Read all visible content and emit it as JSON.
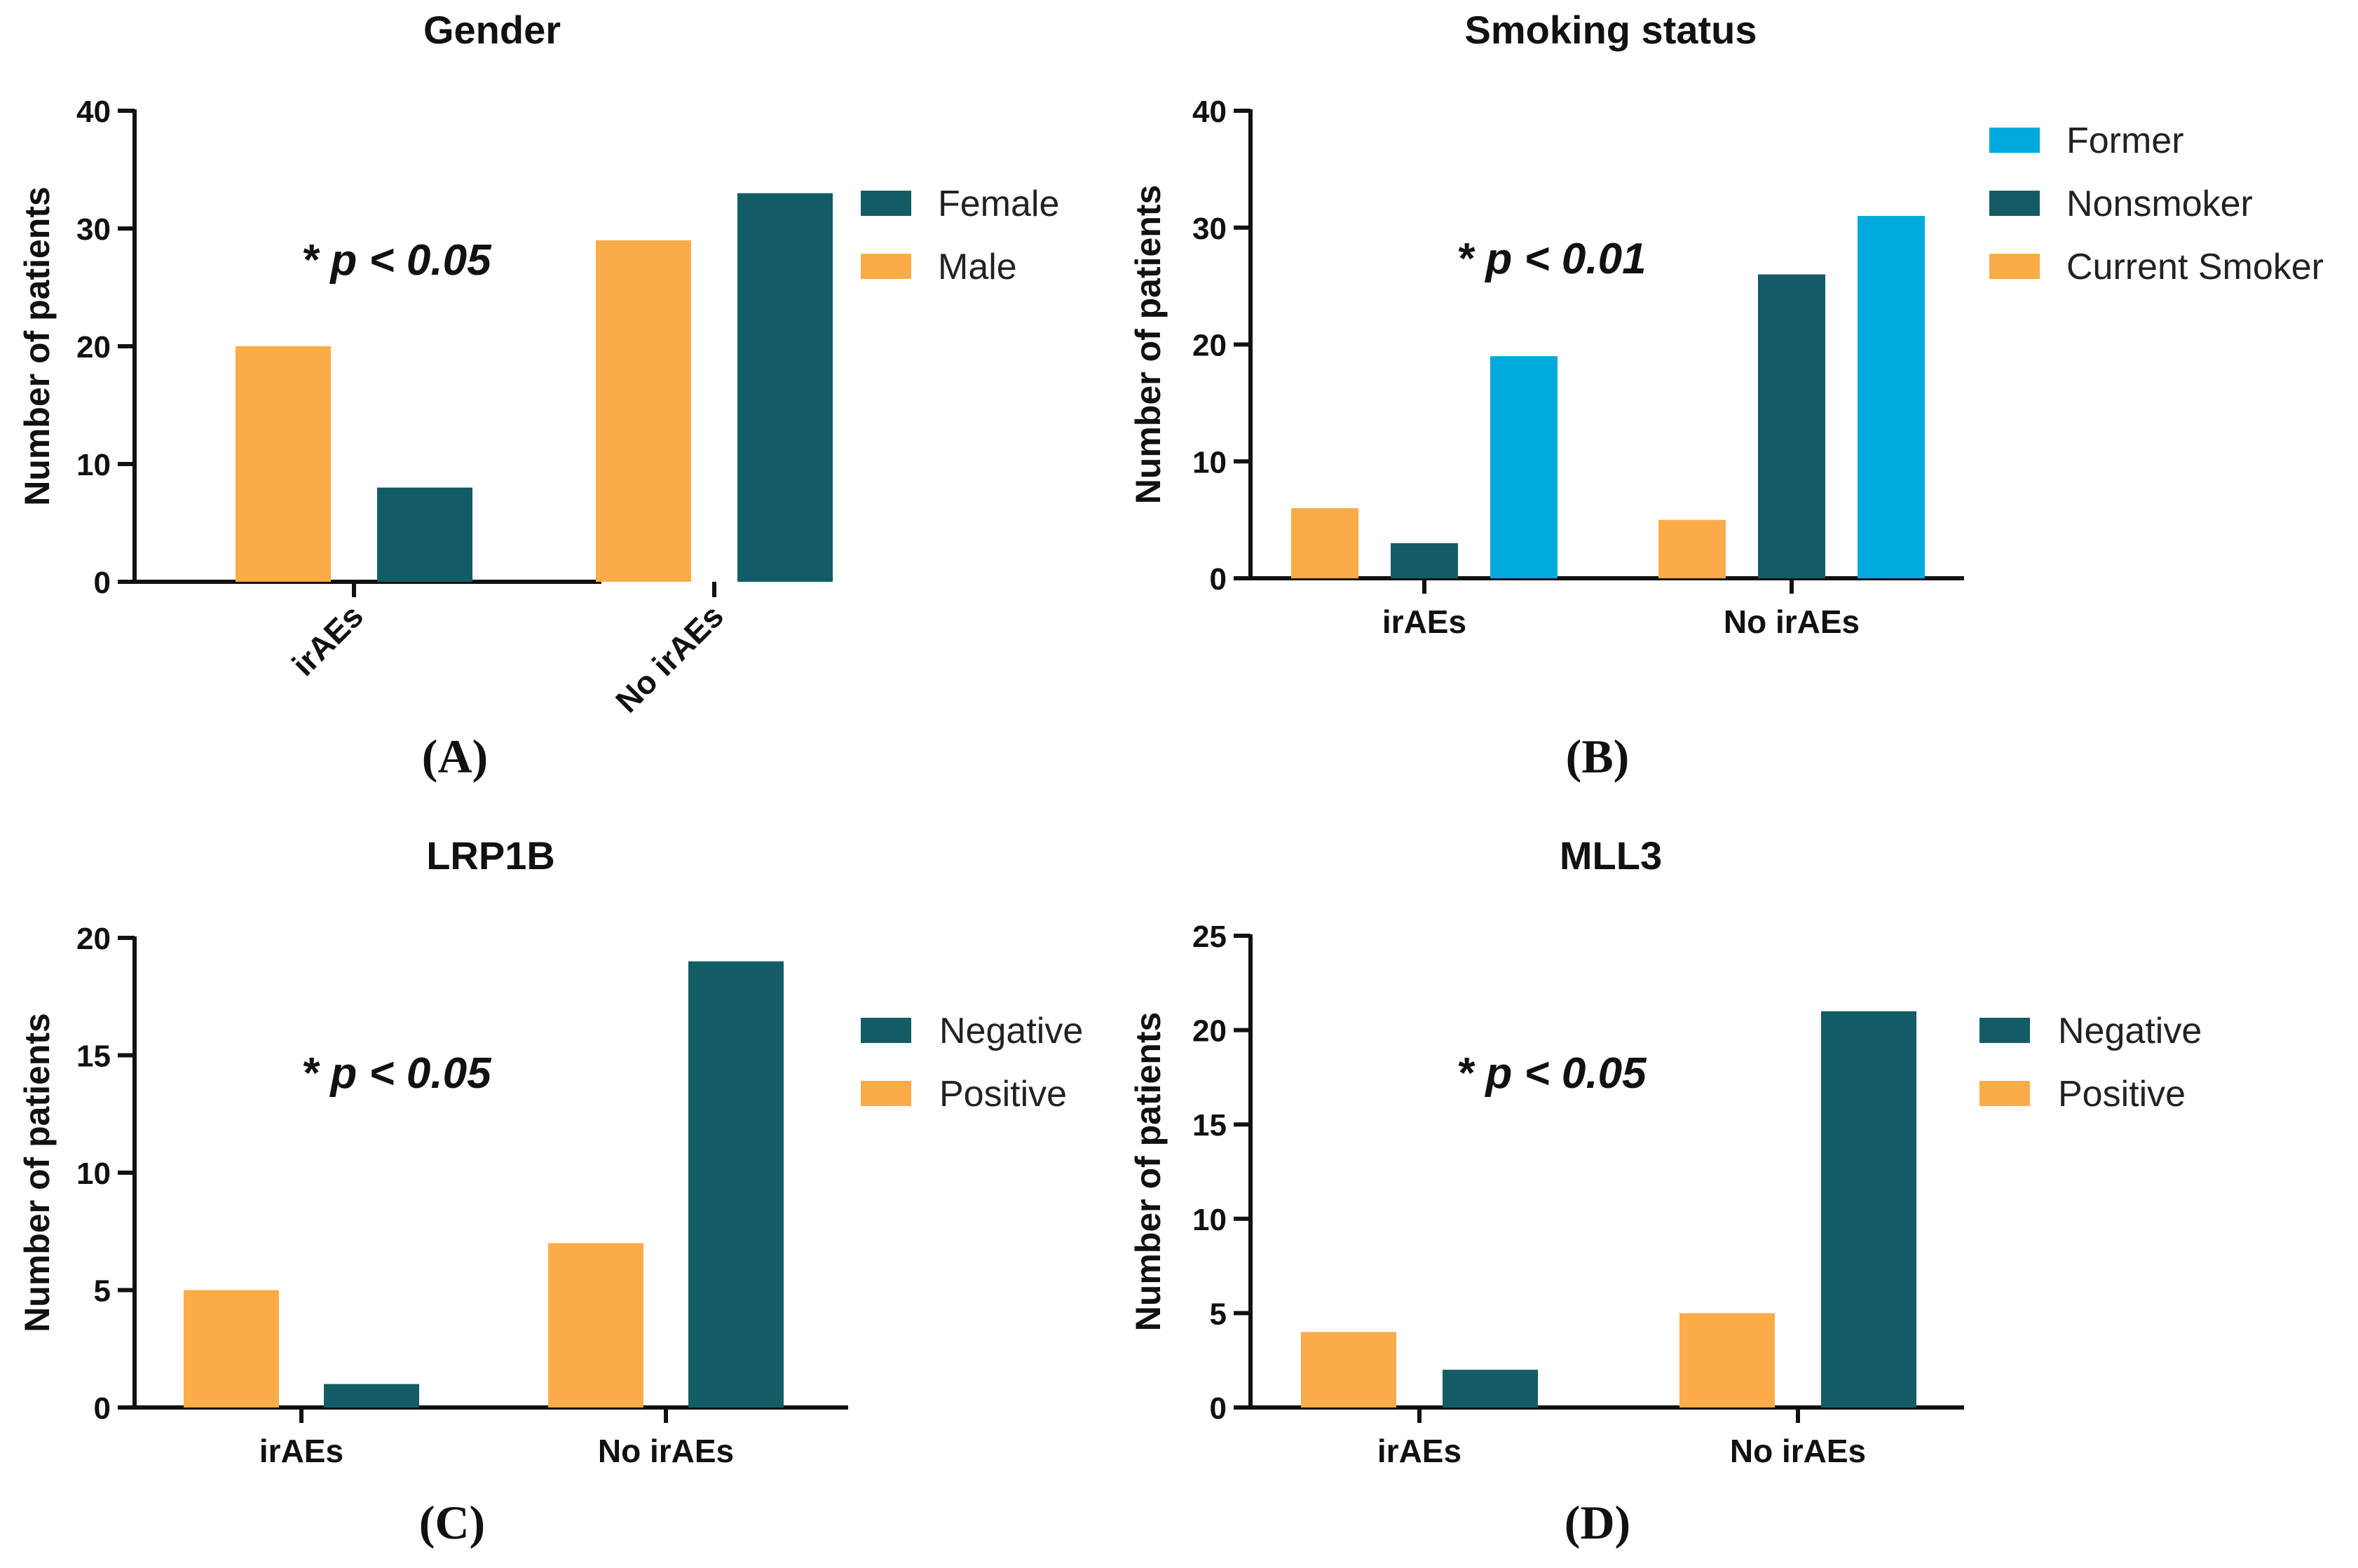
{
  "chart_data": [
    {
      "panel": "(A)",
      "type": "bar",
      "title": "Gender",
      "ylabel": "Number of patients",
      "xlabel": "",
      "ylim": [
        0,
        40
      ],
      "yticks": [
        0,
        10,
        20,
        30,
        40
      ],
      "categories": [
        "irAEs",
        "No irAEs"
      ],
      "rotated_categories": true,
      "annotation": "* p < 0.05",
      "legend_order": [
        "Female",
        "Male"
      ],
      "series": [
        {
          "name": "Male",
          "color": "#FBAC48",
          "values": [
            20,
            29
          ]
        },
        {
          "name": "Female",
          "color": "#135C66",
          "values": [
            8,
            33
          ]
        }
      ]
    },
    {
      "panel": "(B)",
      "type": "bar",
      "title": "Smoking status",
      "ylabel": "Number of patients",
      "xlabel": "",
      "ylim": [
        0,
        40
      ],
      "yticks": [
        0,
        10,
        20,
        30,
        40
      ],
      "categories": [
        "irAEs",
        "No irAEs"
      ],
      "rotated_categories": false,
      "annotation": "* p < 0.01",
      "legend_order": [
        "Former",
        "Nonsmoker",
        "Current Smoker"
      ],
      "series": [
        {
          "name": "Current Smoker",
          "color": "#FBAC48",
          "values": [
            6,
            5
          ]
        },
        {
          "name": "Nonsmoker",
          "color": "#135C66",
          "values": [
            3,
            26
          ]
        },
        {
          "name": "Former",
          "color": "#00AADD",
          "values": [
            19,
            31
          ]
        }
      ]
    },
    {
      "panel": "(C)",
      "type": "bar",
      "title": "LRP1B",
      "ylabel": "Number of patients",
      "xlabel": "",
      "ylim": [
        0,
        20
      ],
      "yticks": [
        0,
        5,
        10,
        15,
        20
      ],
      "categories": [
        "irAEs",
        "No irAEs"
      ],
      "rotated_categories": false,
      "annotation": "* p < 0.05",
      "legend_order": [
        "Negative",
        "Positive"
      ],
      "series": [
        {
          "name": "Positive",
          "color": "#FBAC48",
          "values": [
            5,
            7
          ]
        },
        {
          "name": "Negative",
          "color": "#135C66",
          "values": [
            1,
            19
          ]
        }
      ]
    },
    {
      "panel": "(D)",
      "type": "bar",
      "title": "MLL3",
      "ylabel": "Number of patients",
      "xlabel": "",
      "ylim": [
        0,
        25
      ],
      "yticks": [
        0,
        5,
        10,
        15,
        20,
        25
      ],
      "categories": [
        "irAEs",
        "No irAEs"
      ],
      "rotated_categories": false,
      "annotation": "* p < 0.05",
      "legend_order": [
        "Negative",
        "Positive"
      ],
      "series": [
        {
          "name": "Positive",
          "color": "#FBAC48",
          "values": [
            4,
            5
          ]
        },
        {
          "name": "Negative",
          "color": "#135C66",
          "values": [
            2,
            21
          ]
        }
      ]
    }
  ]
}
